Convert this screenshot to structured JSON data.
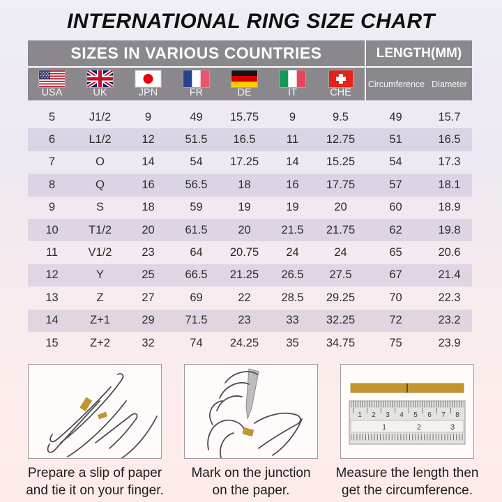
{
  "title": "INTERNATIONAL RING SIZE CHART",
  "table": {
    "group_headers": {
      "countries": "SIZES IN VARIOUS COUNTRIES",
      "length": "LENGTH(MM)"
    },
    "columns": [
      "USA",
      "UK",
      "JPN",
      "FR",
      "DE",
      "IT",
      "CHE"
    ],
    "length_columns": [
      "Circumference",
      "Diameter"
    ],
    "rows": [
      [
        "5",
        "J1/2",
        "9",
        "49",
        "15.75",
        "9",
        "9.5",
        "49",
        "15.7"
      ],
      [
        "6",
        "L1/2",
        "12",
        "51.5",
        "16.5",
        "11",
        "12.75",
        "51",
        "16.5"
      ],
      [
        "7",
        "O",
        "14",
        "54",
        "17.25",
        "14",
        "15.25",
        "54",
        "17.3"
      ],
      [
        "8",
        "Q",
        "16",
        "56.5",
        "18",
        "16",
        "17.75",
        "57",
        "18.1"
      ],
      [
        "9",
        "S",
        "18",
        "59",
        "19",
        "19",
        "20",
        "60",
        "18.9"
      ],
      [
        "10",
        "T1/2",
        "20",
        "61.5",
        "20",
        "21.5",
        "21.75",
        "62",
        "19.8"
      ],
      [
        "11",
        "V1/2",
        "23",
        "64",
        "20.75",
        "24",
        "24",
        "65",
        "20.6"
      ],
      [
        "12",
        "Y",
        "25",
        "66.5",
        "21.25",
        "26.5",
        "27.5",
        "67",
        "21.4"
      ],
      [
        "13",
        "Z",
        "27",
        "69",
        "22",
        "28.5",
        "29.25",
        "70",
        "22.3"
      ],
      [
        "14",
        "Z+1",
        "29",
        "71.5",
        "23",
        "33",
        "32.25",
        "72",
        "23.2"
      ],
      [
        "15",
        "Z+2",
        "32",
        "74",
        "24.25",
        "35",
        "34.75",
        "75",
        "23.9"
      ]
    ]
  },
  "chart_data": {
    "type": "table",
    "title": "INTERNATIONAL RING SIZE CHART",
    "columns": [
      "USA",
      "UK",
      "JPN",
      "FR",
      "DE",
      "IT",
      "CHE",
      "Circumference (mm)",
      "Diameter (mm)"
    ],
    "rows": [
      [
        5,
        "J1/2",
        9,
        49,
        15.75,
        9,
        9.5,
        49,
        15.7
      ],
      [
        6,
        "L1/2",
        12,
        51.5,
        16.5,
        11,
        12.75,
        51,
        16.5
      ],
      [
        7,
        "O",
        14,
        54,
        17.25,
        14,
        15.25,
        54,
        17.3
      ],
      [
        8,
        "Q",
        16,
        56.5,
        18,
        16,
        17.75,
        57,
        18.1
      ],
      [
        9,
        "S",
        18,
        59,
        19,
        19,
        20,
        60,
        18.9
      ],
      [
        10,
        "T1/2",
        20,
        61.5,
        20,
        21.5,
        21.75,
        62,
        19.8
      ],
      [
        11,
        "V1/2",
        23,
        64,
        20.75,
        24,
        24,
        65,
        20.6
      ],
      [
        12,
        "Y",
        25,
        66.5,
        21.25,
        26.5,
        27.5,
        67,
        21.4
      ],
      [
        13,
        "Z",
        27,
        69,
        22,
        28.5,
        29.25,
        70,
        22.3
      ],
      [
        14,
        "Z+1",
        29,
        71.5,
        23,
        33,
        32.25,
        72,
        23.2
      ],
      [
        15,
        "Z+2",
        32,
        74,
        24.25,
        35,
        34.75,
        75,
        23.9
      ]
    ]
  },
  "figures": [
    {
      "caption_line1": "Prepare a slip of paper",
      "caption_line2": "and tie it on your finger."
    },
    {
      "caption_line1": "Mark on the junction",
      "caption_line2": "on the paper."
    },
    {
      "caption_line1": "Measure the length then",
      "caption_line2": "get the circumference.",
      "ruler": {
        "cm": [
          "1",
          "2",
          "3",
          "4",
          "5",
          "6",
          "7",
          "8"
        ],
        "inch": [
          "1",
          "2",
          "3"
        ]
      }
    }
  ],
  "colors": {
    "header_bg": "#8a888c",
    "stripe": "#d9d4e3",
    "background_top": "#efedf6",
    "background_bottom": "#fcebe9",
    "paper_strip_gold": "#c4952f"
  }
}
